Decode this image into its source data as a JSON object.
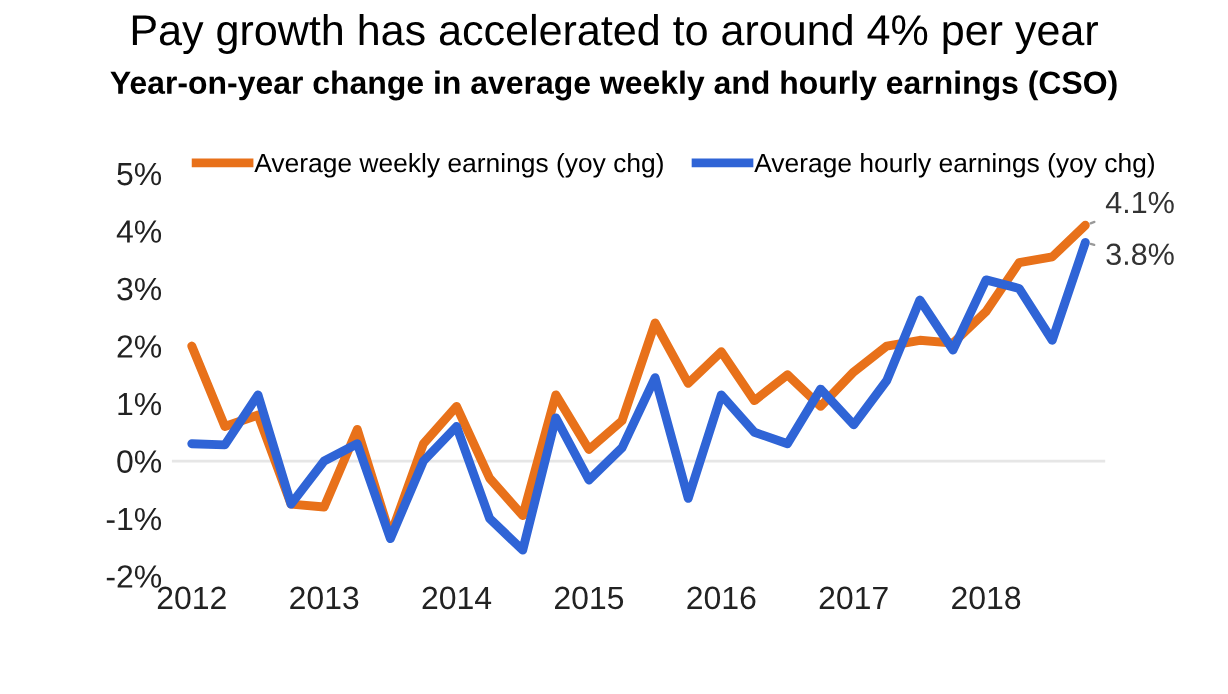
{
  "chart_data": {
    "type": "line",
    "title": "Pay growth has accelerated to around 4% per year",
    "subtitle": "Year-on-year change in average weekly and hourly earnings (CSO)",
    "categories": [
      "2012",
      null,
      null,
      null,
      "2013",
      null,
      null,
      null,
      "2014",
      null,
      null,
      null,
      "2015",
      null,
      null,
      null,
      "2016",
      null,
      null,
      null,
      "2017",
      null,
      null,
      null,
      "2018",
      null,
      null,
      null
    ],
    "series": [
      {
        "name": "Average weekly earnings (yoy chg)",
        "color": "#e8711a",
        "values": [
          2.0,
          0.6,
          0.8,
          -0.75,
          -0.8,
          0.55,
          -1.3,
          0.3,
          0.95,
          -0.3,
          -0.95,
          1.15,
          0.2,
          0.7,
          2.4,
          1.35,
          1.9,
          1.05,
          1.5,
          0.95,
          1.55,
          2.0,
          2.1,
          2.05,
          2.6,
          3.45,
          3.55,
          4.1
        ],
        "value_labels": [
          null,
          null,
          null,
          null,
          null,
          null,
          null,
          null,
          null,
          null,
          null,
          null,
          null,
          null,
          null,
          null,
          null,
          null,
          null,
          null,
          null,
          null,
          null,
          null,
          null,
          null,
          null,
          "4.1%"
        ]
      },
      {
        "name": "Average hourly earnings (yoy chg)",
        "color": "#2f64d6",
        "values": [
          0.3,
          0.28,
          1.15,
          -0.75,
          0.0,
          0.3,
          -1.35,
          0.0,
          0.6,
          -1.0,
          -1.55,
          0.75,
          -0.33,
          0.23,
          1.45,
          -0.65,
          1.15,
          0.5,
          0.3,
          1.25,
          0.63,
          1.4,
          2.8,
          1.93,
          3.15,
          3.0,
          2.1,
          3.8
        ],
        "value_labels": [
          null,
          null,
          null,
          null,
          null,
          null,
          null,
          null,
          null,
          null,
          null,
          null,
          null,
          null,
          null,
          null,
          null,
          null,
          null,
          null,
          null,
          null,
          null,
          null,
          null,
          null,
          null,
          "3.8%"
        ]
      }
    ],
    "ylim": [
      -2,
      5
    ],
    "yticks": [
      {
        "value": -2,
        "label": "-2%"
      },
      {
        "value": -1,
        "label": "-1%"
      },
      {
        "value": 0,
        "label": "0%"
      },
      {
        "value": 1,
        "label": "1%"
      },
      {
        "value": 2,
        "label": "2%"
      },
      {
        "value": 3,
        "label": "3%"
      },
      {
        "value": 4,
        "label": "4%"
      },
      {
        "value": 5,
        "label": "5%"
      }
    ],
    "ref_lines": [
      {
        "axis": "y",
        "value": 0,
        "color": "#e6e6e6"
      }
    ],
    "legend": "top",
    "grid": false,
    "marker": "none",
    "line_style": "solid"
  }
}
